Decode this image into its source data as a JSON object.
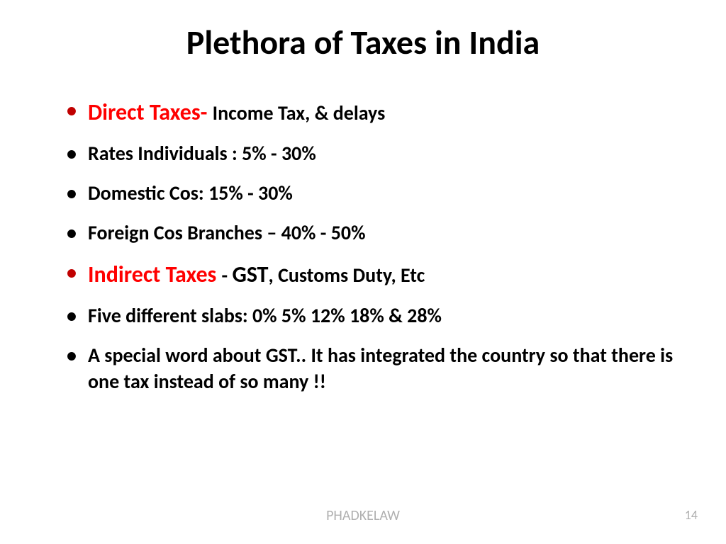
{
  "title": "Plethora of Taxes in India",
  "bullets": [
    {
      "lead": "Direct Taxes- ",
      "rest": "Income Tax, & delays",
      "leadColor": "#ff0000",
      "bulletColor": "red",
      "leadSize": 32,
      "restSize": 28
    },
    {
      "text": "Rates Individuals : 5% - 30%",
      "bulletColor": "black"
    },
    {
      "text": "Domestic Cos: 15% - 30%",
      "bulletColor": "black"
    },
    {
      "text": "Foreign Cos Branches – 40% - 50%",
      "bulletColor": "black"
    },
    {
      "lead": "Indirect Taxes ",
      "mid": "-  ",
      "gst": "GST",
      "comma": ",   ",
      "rest": "Customs Duty, Etc",
      "leadColor": "#ff0000",
      "bulletColor": "red"
    },
    {
      "text": "Five different slabs: 0% 5% 12% 18% & 28%",
      "bulletColor": "black"
    },
    {
      "text": "A special word about GST.. It has integrated the country so that there is one tax instead of so many !!",
      "bulletColor": "black"
    }
  ],
  "footer": "PHADKELAW",
  "pageNumber": "14",
  "colors": {
    "redText": "#ff0000",
    "redBullet": "#c00000",
    "black": "#000000",
    "footerGray": "#b0b0b0",
    "background": "#ffffff"
  },
  "typography": {
    "titleSize": 48,
    "bodySize": 28,
    "leadSize": 32,
    "footerSize": 20,
    "pageNumSize": 18,
    "fontFamily": "Calibri",
    "weight": 700
  }
}
